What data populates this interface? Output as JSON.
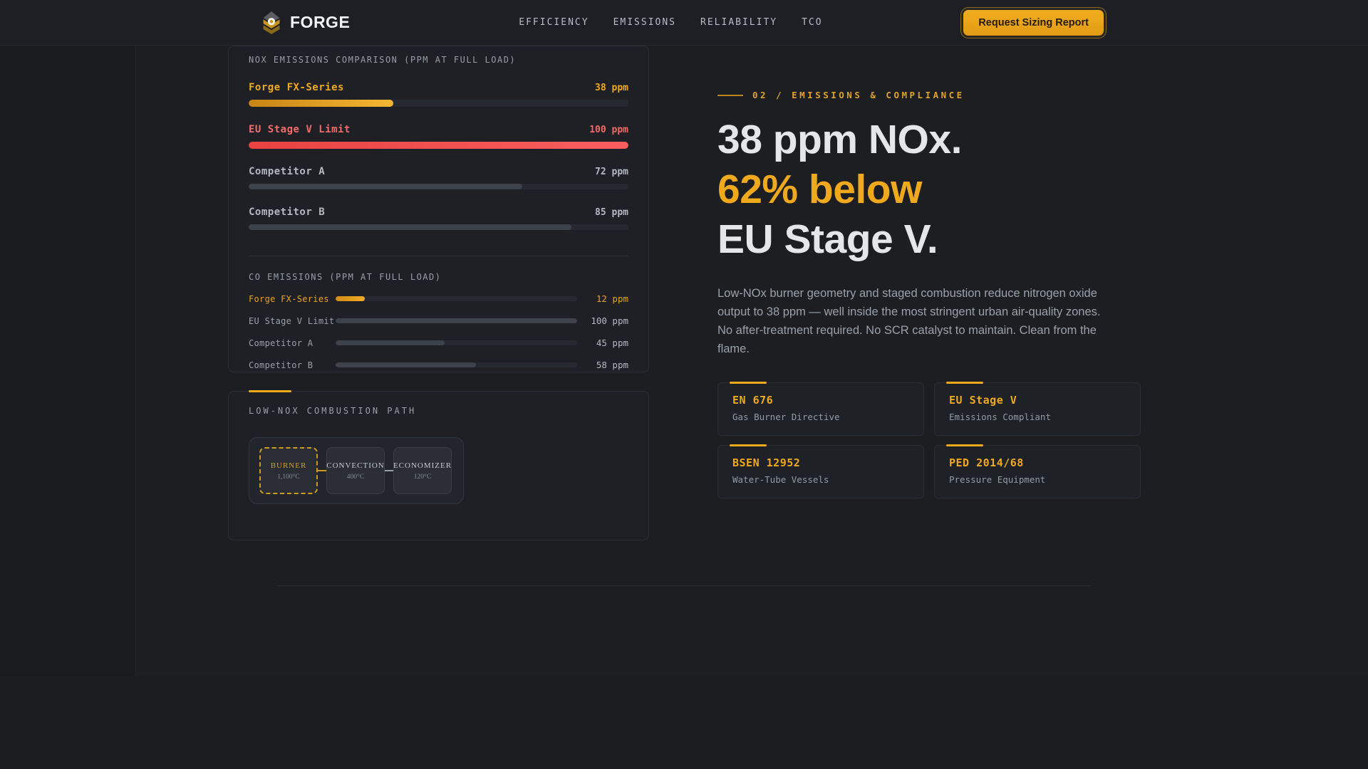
{
  "brand": {
    "name": "FORGE"
  },
  "nav": {
    "links": [
      {
        "label": "EFFICIENCY"
      },
      {
        "label": "EMISSIONS"
      },
      {
        "label": "RELIABILITY"
      },
      {
        "label": "TCO"
      }
    ],
    "cta_label": "Request Sizing Report"
  },
  "nox_panel": {
    "title": "NOX EMISSIONS COMPARISON (PPM AT FULL LOAD)",
    "rows": [
      {
        "label": "Forge FX-Series",
        "value": "38 ppm",
        "pct": 38,
        "variant": "amber"
      },
      {
        "label": "EU Stage V Limit",
        "value": "100 ppm",
        "pct": 100,
        "variant": "red"
      },
      {
        "label": "Competitor A",
        "value": "72 ppm",
        "pct": 72,
        "variant": "gray"
      },
      {
        "label": "Competitor B",
        "value": "85 ppm",
        "pct": 85,
        "variant": "gray"
      }
    ],
    "co_title": "CO EMISSIONS (PPM AT FULL LOAD)",
    "co_rows": [
      {
        "label": "Forge FX-Series",
        "value": "12 ppm",
        "pct": 12,
        "variant": "amber"
      },
      {
        "label": "EU Stage V Limit",
        "value": "100 ppm",
        "pct": 100,
        "variant": "gray"
      },
      {
        "label": "Competitor A",
        "value": "45 ppm",
        "pct": 45,
        "variant": "gray"
      },
      {
        "label": "Competitor B",
        "value": "58 ppm",
        "pct": 58,
        "variant": "gray"
      }
    ]
  },
  "path_panel": {
    "title": "LOW-NOX COMBUSTION PATH",
    "stages": [
      {
        "name": "BURNER",
        "temp": "1,100°C",
        "highlight": true
      },
      {
        "name": "CONVECTION",
        "temp": "400°C",
        "highlight": false
      },
      {
        "name": "ECONOMIZER",
        "temp": "120°C",
        "highlight": false
      }
    ]
  },
  "section": {
    "kicker": "02 / EMISSIONS & COMPLIANCE",
    "headline": [
      {
        "text": "38 ppm NOx.",
        "accent": false
      },
      {
        "text": "62% below",
        "accent": true
      },
      {
        "text": "EU Stage V.",
        "accent": false
      }
    ],
    "body": "Low-NOx burner geometry and staged combustion reduce nitrogen oxide output to 38 ppm — well inside the most stringent urban air-quality zones. No after-treatment required. No SCR catalyst to maintain. Clean from the flame.",
    "cards": [
      {
        "title": "EN 676",
        "subtitle": "Gas Burner Directive"
      },
      {
        "title": "EU Stage V",
        "subtitle": "Emissions Compliant"
      },
      {
        "title": "BSEN 12952",
        "subtitle": "Water-Tube Vessels"
      },
      {
        "title": "PED 2014/68",
        "subtitle": "Pressure Equipment"
      }
    ]
  },
  "colors": {
    "accent_amber": "#f0a91c",
    "limit_red": "#ef4747",
    "background": "#1a1b1f"
  },
  "chart_data": [
    {
      "type": "bar",
      "title": "NOX EMISSIONS COMPARISON (PPM AT FULL LOAD)",
      "categories": [
        "Forge FX-Series",
        "EU Stage V Limit",
        "Competitor A",
        "Competitor B"
      ],
      "values": [
        38,
        100,
        72,
        85
      ],
      "unit": "ppm",
      "xlim": [
        0,
        100
      ],
      "orientation": "horizontal"
    },
    {
      "type": "bar",
      "title": "CO EMISSIONS (PPM AT FULL LOAD)",
      "categories": [
        "Forge FX-Series",
        "EU Stage V Limit",
        "Competitor A",
        "Competitor B"
      ],
      "values": [
        12,
        100,
        45,
        58
      ],
      "unit": "ppm",
      "xlim": [
        0,
        100
      ],
      "orientation": "horizontal"
    }
  ]
}
